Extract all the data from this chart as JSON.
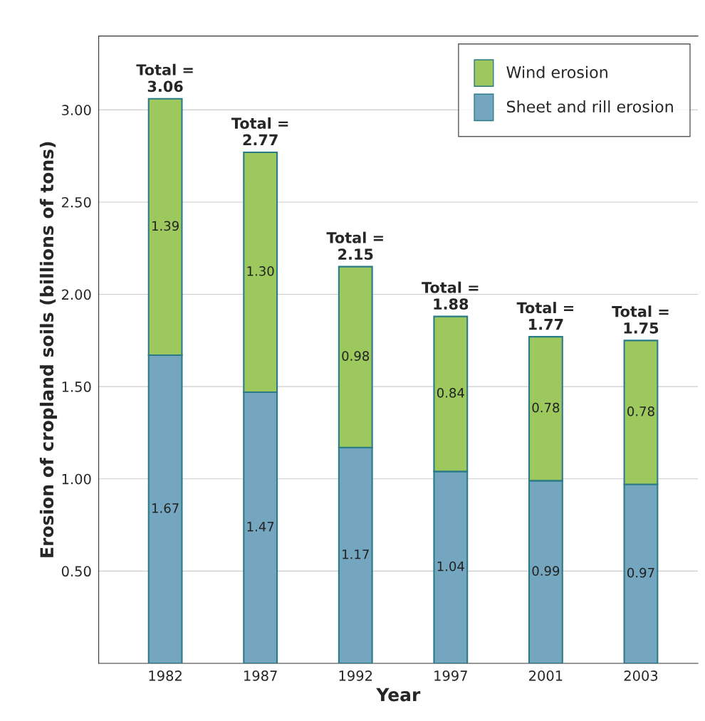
{
  "chart_data": {
    "type": "bar",
    "stacked": true,
    "xlabel": "Year",
    "ylabel": "Erosion of cropland soils (billions of tons)",
    "categories": [
      "1982",
      "1987",
      "1992",
      "1997",
      "2001",
      "2003"
    ],
    "series": [
      {
        "name": "Sheet and rill erosion",
        "color": "#74a7bf",
        "values": [
          1.67,
          1.47,
          1.17,
          1.04,
          0.99,
          0.97
        ],
        "value_labels": [
          "1.67",
          "1.47",
          "1.17",
          "1.04",
          "0.99",
          "0.97"
        ]
      },
      {
        "name": "Wind erosion",
        "color": "#9cc85e",
        "values": [
          1.39,
          1.3,
          0.98,
          0.84,
          0.78,
          0.78
        ],
        "value_labels": [
          "1.39",
          "1.30",
          "0.98",
          "0.84",
          "0.78",
          "0.78"
        ]
      }
    ],
    "ylim": [
      0,
      3.4
    ],
    "yticks": [
      {
        "value": 0.5,
        "label": "0.50"
      },
      {
        "value": 1.0,
        "label": "1.00"
      },
      {
        "value": 1.5,
        "label": "1.50"
      },
      {
        "value": 2.0,
        "label": "2.00"
      },
      {
        "value": 2.5,
        "label": "2.50"
      },
      {
        "value": 3.0,
        "label": "3.00"
      }
    ],
    "totals": [
      "Total =\n3.06",
      "Total =\n2.77",
      "Total =\n2.15",
      "Total =\n1.88",
      "Total =\n1.77",
      "Total =\n1.75"
    ],
    "grid": "y",
    "legend": "top right"
  }
}
